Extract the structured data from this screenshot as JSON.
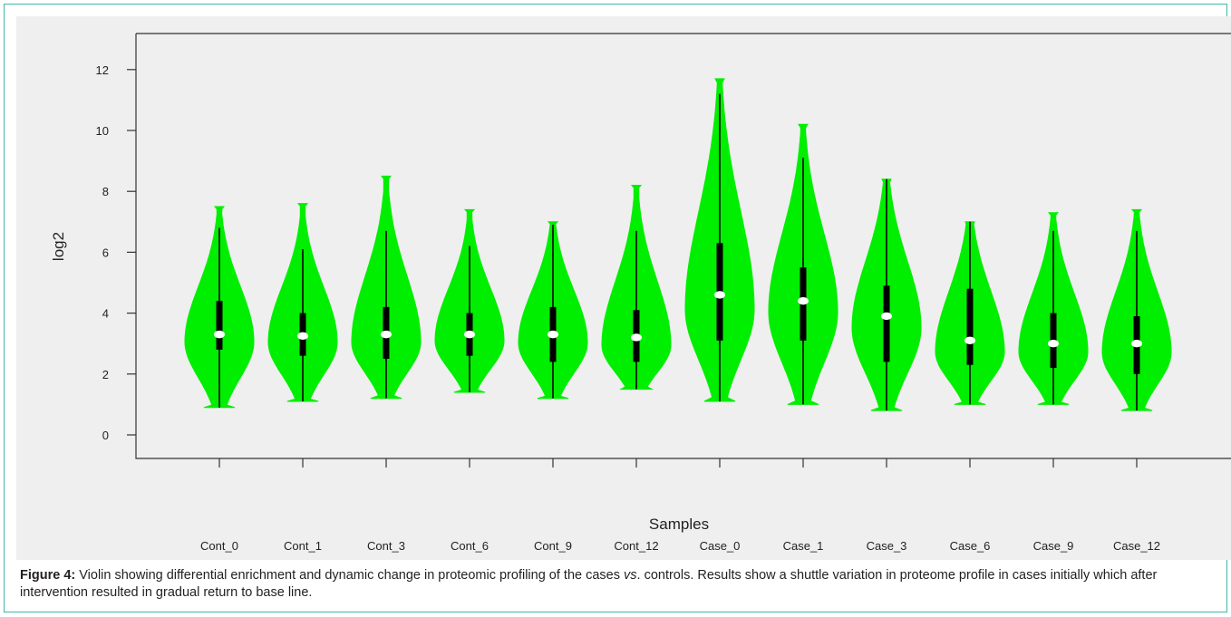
{
  "chart_data": {
    "type": "violin",
    "xlabel": "Samples",
    "ylabel": "log2",
    "ylim": [
      -0.5,
      13.2
    ],
    "yticks": [
      0,
      2,
      4,
      6,
      8,
      10,
      12
    ],
    "grid": false,
    "fill_color": "#00ee00",
    "categories": [
      "Cont_0",
      "Cont_1",
      "Cont_3",
      "Cont_6",
      "Cont_9",
      "Cont_12",
      "Case_0",
      "Case_1",
      "Case_3",
      "Case_6",
      "Case_9",
      "Case_12"
    ],
    "violins": [
      {
        "name": "Cont_0",
        "min": 0.9,
        "max": 7.5,
        "q1": 2.8,
        "median": 3.3,
        "q3": 4.4,
        "whisker_low": 0.9,
        "whisker_high": 6.8
      },
      {
        "name": "Cont_1",
        "min": 1.1,
        "max": 7.6,
        "q1": 2.6,
        "median": 3.25,
        "q3": 4.0,
        "whisker_low": 1.1,
        "whisker_high": 6.1
      },
      {
        "name": "Cont_3",
        "min": 1.2,
        "max": 8.5,
        "q1": 2.5,
        "median": 3.3,
        "q3": 4.2,
        "whisker_low": 1.2,
        "whisker_high": 6.7
      },
      {
        "name": "Cont_6",
        "min": 1.4,
        "max": 7.4,
        "q1": 2.6,
        "median": 3.3,
        "q3": 4.0,
        "whisker_low": 1.4,
        "whisker_high": 6.2
      },
      {
        "name": "Cont_9",
        "min": 1.2,
        "max": 7.0,
        "q1": 2.4,
        "median": 3.3,
        "q3": 4.2,
        "whisker_low": 1.2,
        "whisker_high": 6.9
      },
      {
        "name": "Cont_12",
        "min": 1.5,
        "max": 8.2,
        "q1": 2.4,
        "median": 3.2,
        "q3": 4.1,
        "whisker_low": 1.5,
        "whisker_high": 6.7
      },
      {
        "name": "Case_0",
        "min": 1.1,
        "max": 11.7,
        "q1": 3.1,
        "median": 4.6,
        "q3": 6.3,
        "whisker_low": 1.1,
        "whisker_high": 11.2
      },
      {
        "name": "Case_1",
        "min": 1.0,
        "max": 10.2,
        "q1": 3.1,
        "median": 4.4,
        "q3": 5.5,
        "whisker_low": 1.0,
        "whisker_high": 9.1
      },
      {
        "name": "Case_3",
        "min": 0.8,
        "max": 8.4,
        "q1": 2.4,
        "median": 3.9,
        "q3": 4.9,
        "whisker_low": 0.8,
        "whisker_high": 8.4
      },
      {
        "name": "Case_6",
        "min": 1.0,
        "max": 7.0,
        "q1": 2.3,
        "median": 3.1,
        "q3": 4.8,
        "whisker_low": 1.0,
        "whisker_high": 7.0
      },
      {
        "name": "Case_9",
        "min": 1.0,
        "max": 7.3,
        "q1": 2.2,
        "median": 3.0,
        "q3": 4.0,
        "whisker_low": 1.0,
        "whisker_high": 6.7
      },
      {
        "name": "Case_12",
        "min": 0.8,
        "max": 7.4,
        "q1": 2.0,
        "median": 3.0,
        "q3": 3.9,
        "whisker_low": 0.8,
        "whisker_high": 6.7
      }
    ]
  },
  "caption": {
    "label": "Figure 4:",
    "text_before_italic": " Violin showing differential enrichment and dynamic change in proteomic profiling of the cases ",
    "italic": "vs",
    "text_after_italic": ". controls. Results show a shuttle variation in proteome profile in cases initially which after intervention resulted in gradual return to base line."
  }
}
